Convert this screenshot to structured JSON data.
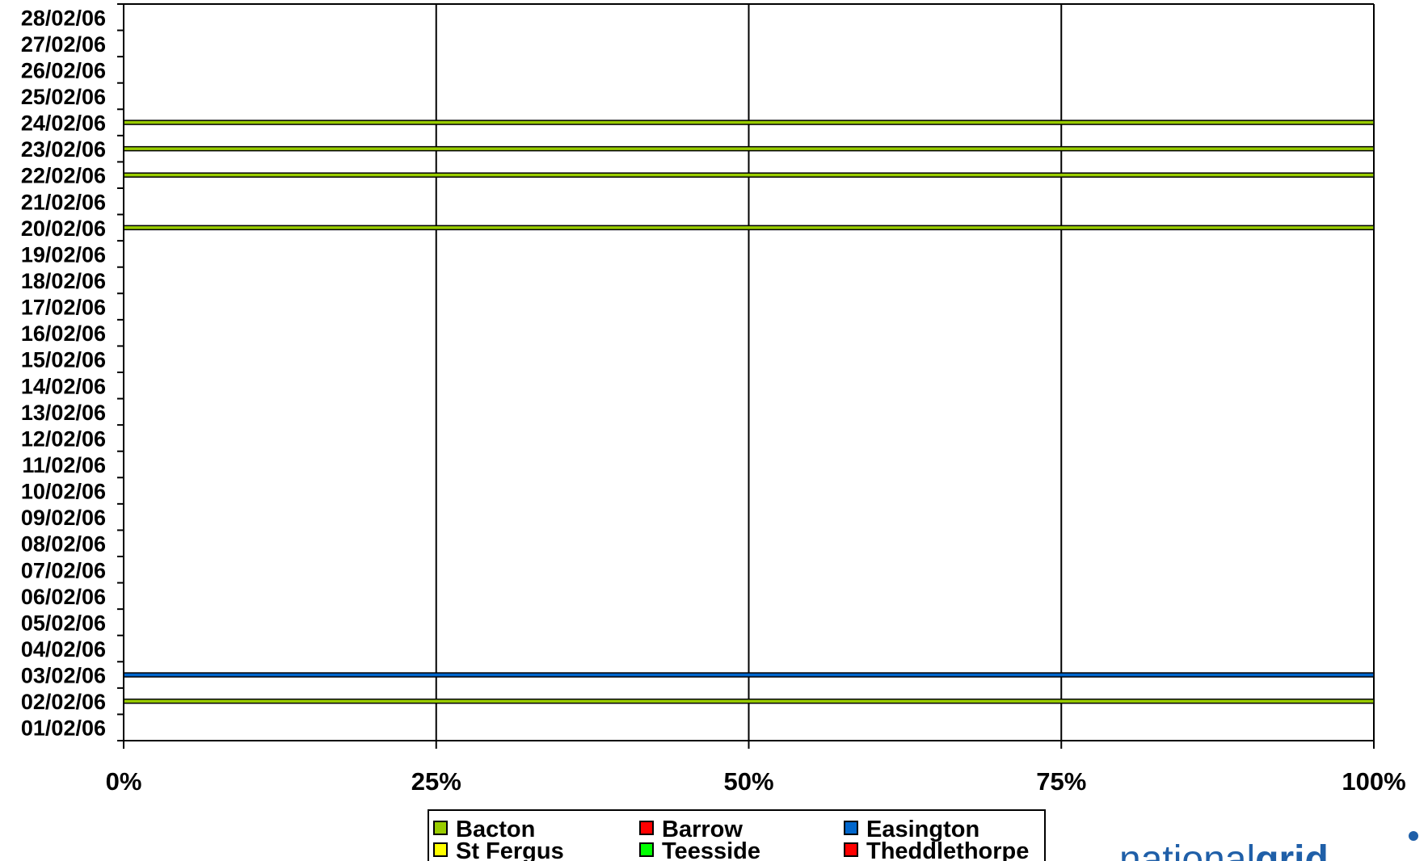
{
  "chart_data": {
    "type": "bar",
    "orientation": "horizontal",
    "stacked": "percent",
    "categories": [
      "01/02/06",
      "02/02/06",
      "03/02/06",
      "04/02/06",
      "05/02/06",
      "06/02/06",
      "07/02/06",
      "08/02/06",
      "09/02/06",
      "10/02/06",
      "11/02/06",
      "12/02/06",
      "13/02/06",
      "14/02/06",
      "15/02/06",
      "16/02/06",
      "17/02/06",
      "18/02/06",
      "19/02/06",
      "20/02/06",
      "21/02/06",
      "22/02/06",
      "23/02/06",
      "24/02/06",
      "25/02/06",
      "26/02/06",
      "27/02/06",
      "28/02/06"
    ],
    "x_tick_labels": [
      "0%",
      "25%",
      "50%",
      "75%",
      "100%"
    ],
    "xlim": [
      0,
      100
    ],
    "grid": "vertical",
    "legend_position": "bottom",
    "series": [
      {
        "name": "Bacton",
        "color": "#99cc00",
        "values": [
          0,
          1,
          0,
          0,
          0,
          0,
          0,
          0,
          0,
          0,
          0,
          0,
          0,
          0,
          0,
          0,
          0,
          0,
          0,
          1,
          0,
          1,
          1,
          1,
          0,
          0,
          0,
          0
        ]
      },
      {
        "name": "Barrow",
        "color": "#ff0000",
        "values": [
          0,
          0,
          0,
          0,
          0,
          0,
          0,
          0,
          0,
          0,
          0,
          0,
          0,
          0,
          0,
          0,
          0,
          0,
          0,
          0,
          0,
          0,
          0,
          0,
          0,
          0,
          0,
          0
        ]
      },
      {
        "name": "Easington",
        "color": "#0066cc",
        "values": [
          0,
          0,
          1,
          0,
          0,
          0,
          0,
          0,
          0,
          0,
          0,
          0,
          0,
          0,
          0,
          0,
          0,
          0,
          0,
          0,
          0,
          0,
          0,
          0,
          0,
          0,
          0,
          0
        ]
      },
      {
        "name": "St Fergus",
        "color": "#ffff00",
        "values": [
          0,
          0,
          0,
          0,
          0,
          0,
          0,
          0,
          0,
          0,
          0,
          0,
          0,
          0,
          0,
          0,
          0,
          0,
          0,
          0,
          0,
          0,
          0,
          0,
          0,
          0,
          0,
          0
        ]
      },
      {
        "name": "Teesside",
        "color": "#00ff00",
        "values": [
          0,
          0,
          0,
          0,
          0,
          0,
          0,
          0,
          0,
          0,
          0,
          0,
          0,
          0,
          0,
          0,
          0,
          0,
          0,
          0,
          0,
          0,
          0,
          0,
          0,
          0,
          0,
          0
        ]
      },
      {
        "name": "Theddlethorpe",
        "color": "#ff0000",
        "values": [
          0,
          0,
          0,
          0,
          0,
          0,
          0,
          0,
          0,
          0,
          0,
          0,
          0,
          0,
          0,
          0,
          0,
          0,
          0,
          0,
          0,
          0,
          0,
          0,
          0,
          0,
          0,
          0
        ]
      }
    ]
  },
  "logo": {
    "text_light": "national",
    "text_bold": "grid",
    "color": "#1f5fa8"
  }
}
